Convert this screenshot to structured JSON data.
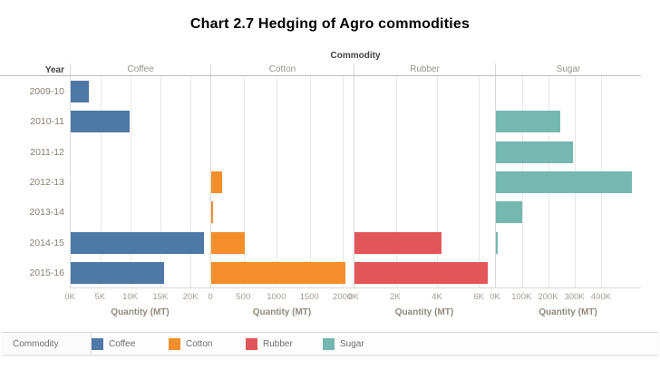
{
  "title": "Chart 2.7 Hedging of Agro commodities",
  "chart_data": {
    "type": "bar",
    "orientation": "horizontal",
    "facet_header": "Commodity",
    "row_header_label": "Year",
    "years": [
      "2009-10",
      "2010-11",
      "2011-12",
      "2012-13",
      "2013-14",
      "2014-15",
      "2015-16"
    ],
    "panels": [
      {
        "name": "Coffee",
        "color": "#4e79a7",
        "axis_label": "Quantity (MT)",
        "axis_max": 23300,
        "ticks": [
          {
            "label": "0K",
            "value": 0
          },
          {
            "label": "5K",
            "value": 5000
          },
          {
            "label": "10K",
            "value": 10000
          },
          {
            "label": "15K",
            "value": 15000
          },
          {
            "label": "20K",
            "value": 20000
          }
        ],
        "values": [
          3100,
          9800,
          0,
          0,
          0,
          22300,
          15600
        ]
      },
      {
        "name": "Cotton",
        "color": "#f28e2b",
        "axis_label": "Quantity (MT)",
        "axis_max": 2170,
        "ticks": [
          {
            "label": "0",
            "value": 0
          },
          {
            "label": "500",
            "value": 500
          },
          {
            "label": "1000",
            "value": 1000
          },
          {
            "label": "1500",
            "value": 1500
          },
          {
            "label": "2000",
            "value": 2000
          }
        ],
        "values": [
          0,
          0,
          0,
          165,
          30,
          510,
          2050
        ]
      },
      {
        "name": "Rubber",
        "color": "#e15759",
        "axis_label": "Quantity (MT)",
        "axis_max": 6780,
        "ticks": [
          {
            "label": "0K",
            "value": 0
          },
          {
            "label": "2K",
            "value": 2000
          },
          {
            "label": "4K",
            "value": 4000
          },
          {
            "label": "6K",
            "value": 6000
          }
        ],
        "values": [
          0,
          0,
          0,
          0,
          0,
          4200,
          6450
        ]
      },
      {
        "name": "Sugar",
        "color": "#76b7b2",
        "axis_label": "Quantity (MT)",
        "axis_max": 551000,
        "ticks": [
          {
            "label": "0K",
            "value": 0
          },
          {
            "label": "100K",
            "value": 100000
          },
          {
            "label": "200K",
            "value": 200000
          },
          {
            "label": "300K",
            "value": 300000
          },
          {
            "label": "400K",
            "value": 400000
          }
        ],
        "values": [
          0,
          245000,
          291000,
          516000,
          100000,
          8000,
          0
        ]
      }
    ],
    "legend": {
      "title": "Commodity",
      "items": [
        {
          "label": "Coffee",
          "color": "#4e79a7"
        },
        {
          "label": "Cotton",
          "color": "#f28e2b"
        },
        {
          "label": "Rubber",
          "color": "#e15759"
        },
        {
          "label": "Sugar",
          "color": "#76b7b2"
        }
      ]
    }
  }
}
